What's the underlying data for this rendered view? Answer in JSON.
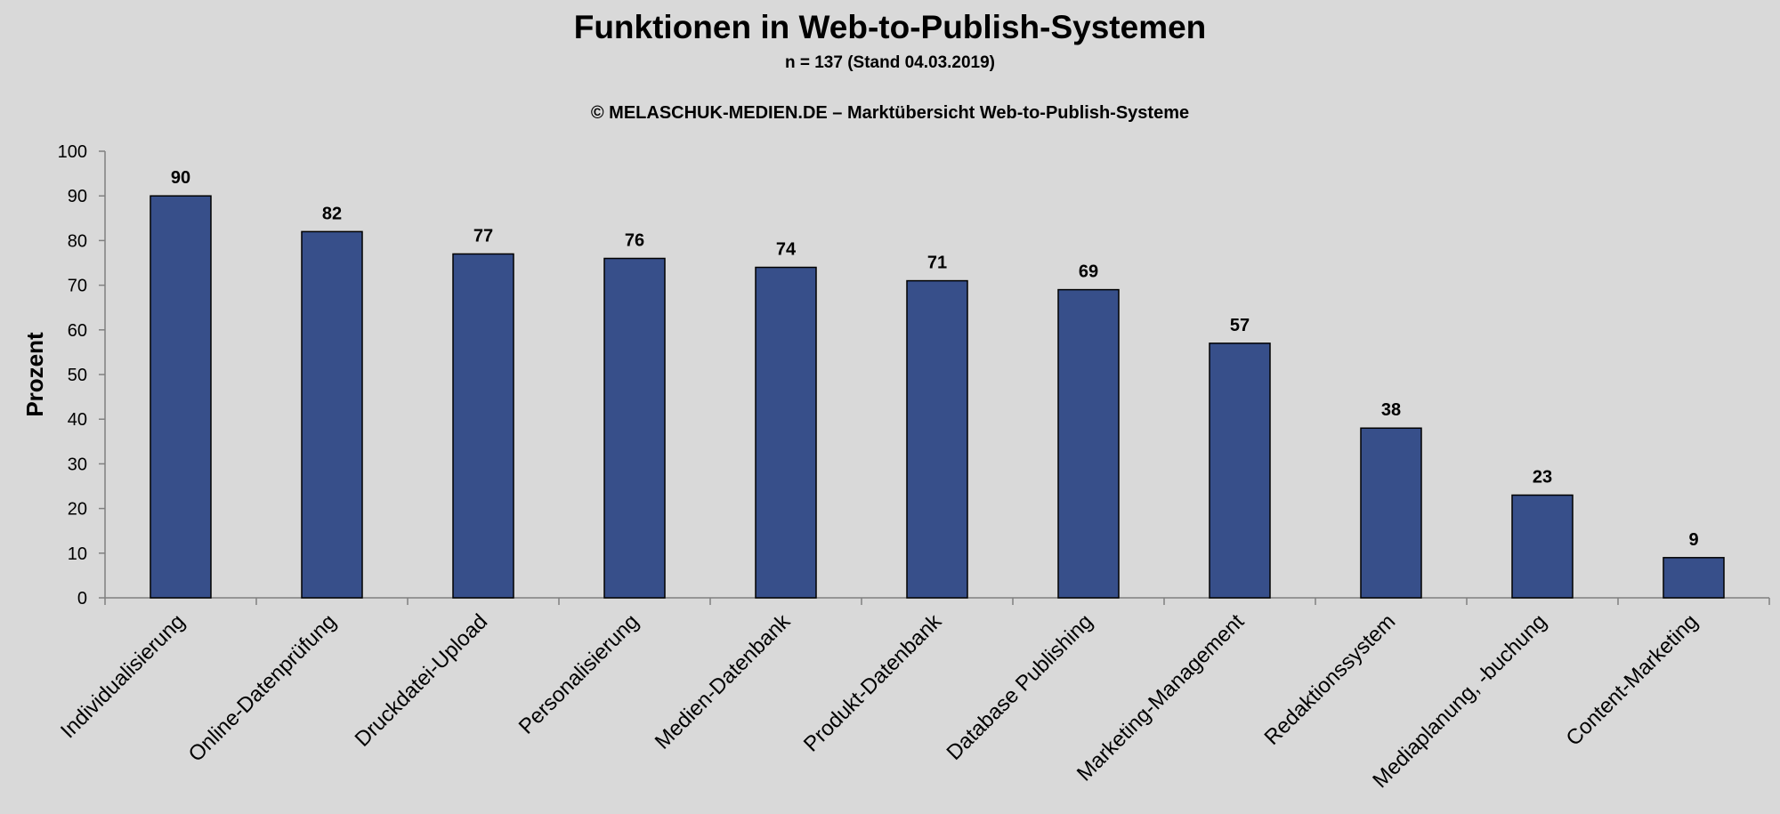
{
  "title": "Funktionen in Web-to-Publish-Systemen",
  "subtitle": "n = 137 (Stand 04.03.2019)",
  "copyright": "© MELASCHUK-MEDIEN.DE – Marktübersicht Web-to-Publish-Systeme",
  "chart_data": {
    "type": "bar",
    "categories": [
      "Individualisierung",
      "Online-Datenprüfung",
      "Druckdatei-Upload",
      "Personalisierung",
      "Medien-Datenbank",
      "Produkt-Datenbank",
      "Database Publishing",
      "Marketing-Management",
      "Redaktionssystem",
      "Mediaplanung, -buchung",
      "Content-Marketing"
    ],
    "values": [
      90,
      82,
      77,
      76,
      74,
      71,
      69,
      57,
      38,
      23,
      9
    ],
    "data_labels": [
      "90",
      "82",
      "77",
      "76",
      "74",
      "71",
      "69",
      "57",
      "38",
      "23",
      "9"
    ],
    "xlabel": "",
    "ylabel": "Prozent",
    "ylim": [
      0,
      100
    ],
    "yticks": [
      "0",
      "10",
      "20",
      "30",
      "40",
      "50",
      "60",
      "70",
      "80",
      "90",
      "100"
    ],
    "grid": false,
    "legend": "none",
    "bar_color": "#374f8a"
  }
}
